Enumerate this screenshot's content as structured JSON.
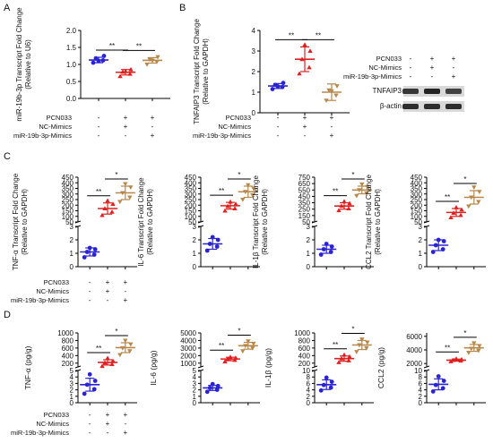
{
  "panel_letters": [
    "A",
    "B",
    "C",
    "D"
  ],
  "colors": {
    "control": "#2a23d4",
    "nc": "#e0201f",
    "mimic": "#b8874a",
    "band": "#1a1a1a",
    "blot_bg": "#d9d9d9"
  },
  "conditions": {
    "labels": [
      "PCN033",
      "NC-Mimics",
      "miR-19b-3p-Mimics"
    ],
    "matrix": [
      [
        "-",
        "+",
        "+"
      ],
      [
        "-",
        "+",
        "-"
      ],
      [
        "-",
        "-",
        "+"
      ]
    ]
  },
  "western_blot": {
    "rows": [
      "PCN033",
      "NC-Mimics",
      "miR-19b-3p-Mimics"
    ],
    "signs": [
      [
        "-",
        "+",
        "+"
      ],
      [
        "-",
        "+",
        "-"
      ],
      [
        "-",
        "-",
        "+"
      ]
    ],
    "bands": [
      "TNFAIP3",
      "β-actin"
    ],
    "band_intensity": [
      [
        0.85,
        0.95,
        0.8
      ],
      [
        0.9,
        0.9,
        0.9
      ]
    ]
  },
  "chart_data": [
    {
      "id": "A",
      "type": "scatter",
      "ylabel": "miR-19b-3p Transcript Fold Change (Relative to U6)",
      "yticks": [
        "0.0",
        "0.5",
        "1.0",
        "1.5",
        "2.0"
      ],
      "ylim": [
        0,
        2
      ],
      "groups": [
        {
          "points": [
            1.05,
            1.12,
            1.18,
            1.25,
            1.1
          ],
          "mean": 1.13,
          "sd": 0.08
        },
        {
          "points": [
            0.65,
            0.72,
            0.78,
            0.85,
            0.8
          ],
          "mean": 0.77,
          "sd": 0.08
        },
        {
          "points": [
            1.0,
            1.08,
            1.15,
            1.22,
            1.12
          ],
          "mean": 1.12,
          "sd": 0.08
        }
      ],
      "sig": [
        {
          "from": 0,
          "to": 1,
          "label": "**"
        },
        {
          "from": 1,
          "to": 2,
          "label": "**"
        }
      ]
    },
    {
      "id": "B",
      "type": "scatter",
      "ylabel": "TNFAIP3 Transcript Fold Change (Relative to GAPDH)",
      "yticks": [
        "0",
        "1",
        "2",
        "3",
        "4"
      ],
      "ylim": [
        0,
        4
      ],
      "groups": [
        {
          "points": [
            1.15,
            1.25,
            1.35,
            1.45,
            1.28
          ],
          "mean": 1.3,
          "sd": 0.12
        },
        {
          "points": [
            1.9,
            2.2,
            2.6,
            3.0,
            3.3
          ],
          "mean": 2.6,
          "sd": 0.6
        },
        {
          "points": [
            0.6,
            0.85,
            1.1,
            1.3,
            1.05
          ],
          "mean": 1.0,
          "sd": 0.4
        }
      ],
      "sig": [
        {
          "from": 0,
          "to": 1,
          "label": "**"
        },
        {
          "from": 1,
          "to": 2,
          "label": "**"
        }
      ]
    },
    {
      "id": "C1",
      "type": "scatter",
      "ylabel": "TNF-α Transcript Fold Change (Relative to GAPDH)",
      "yticks_top": [
        "50",
        "100",
        "150",
        "200",
        "250",
        "300",
        "350",
        "400",
        "450"
      ],
      "top_range": [
        50,
        450
      ],
      "yticks_bottom": [
        "0",
        "1",
        "2",
        "3"
      ],
      "bottom_range": [
        0,
        3
      ],
      "groups": [
        {
          "points": [
            0.7,
            0.9,
            1.1,
            1.3,
            1.4
          ],
          "mean": 1.1,
          "sd": 0.3
        },
        {
          "points": [
            110,
            140,
            170,
            210,
            240
          ],
          "mean": 170,
          "sd": 50
        },
        {
          "points": [
            230,
            270,
            310,
            360,
            390
          ],
          "mean": 310,
          "sd": 60
        }
      ],
      "sig": [
        {
          "from": 0,
          "to": 1,
          "label": "**"
        },
        {
          "from": 1,
          "to": 2,
          "label": "*"
        }
      ]
    },
    {
      "id": "C2",
      "type": "scatter",
      "ylabel": "IL-6 Transcript Fold Change (Relative to GAPDH)",
      "yticks_top": [
        "50",
        "100",
        "150",
        "200",
        "250",
        "300",
        "350",
        "400",
        "450"
      ],
      "top_range": [
        50,
        450
      ],
      "yticks_bottom": [
        "0",
        "1",
        "2",
        "3"
      ],
      "bottom_range": [
        0,
        3
      ],
      "groups": [
        {
          "points": [
            1.2,
            1.5,
            1.7,
            2.0,
            2.2
          ],
          "mean": 1.7,
          "sd": 0.4
        },
        {
          "points": [
            150,
            170,
            190,
            210,
            230
          ],
          "mean": 195,
          "sd": 30
        },
        {
          "points": [
            250,
            290,
            320,
            350,
            380
          ],
          "mean": 320,
          "sd": 50
        }
      ],
      "sig": [
        {
          "from": 0,
          "to": 1,
          "label": "**"
        },
        {
          "from": 1,
          "to": 2,
          "label": "*"
        }
      ]
    },
    {
      "id": "C3",
      "type": "scatter",
      "ylabel": "IL-1β Transcript Fold Change (Relative to GAPDH)",
      "yticks_top": [
        "50",
        "150",
        "250",
        "350",
        "450",
        "550",
        "650",
        "750"
      ],
      "top_range": [
        50,
        750
      ],
      "yticks_bottom": [
        "0",
        "1",
        "2",
        "3"
      ],
      "bottom_range": [
        0,
        3
      ],
      "groups": [
        {
          "points": [
            0.9,
            1.1,
            1.3,
            1.5,
            1.7
          ],
          "mean": 1.3,
          "sd": 0.3
        },
        {
          "points": [
            230,
            260,
            300,
            340,
            370
          ],
          "mean": 300,
          "sd": 50
        },
        {
          "points": [
            460,
            500,
            550,
            600,
            640
          ],
          "mean": 550,
          "sd": 60
        }
      ],
      "sig": [
        {
          "from": 0,
          "to": 1,
          "label": "**"
        },
        {
          "from": 1,
          "to": 2,
          "label": "*"
        }
      ]
    },
    {
      "id": "C4",
      "type": "scatter",
      "ylabel": "CCL2 Transcript Fold Change (Relative to GAPDH)",
      "yticks_top": [
        "50",
        "100",
        "150",
        "200",
        "250",
        "300",
        "350",
        "400",
        "450"
      ],
      "top_range": [
        50,
        450
      ],
      "yticks_bottom": [
        "0",
        "1",
        "2",
        "3"
      ],
      "bottom_range": [
        0,
        3
      ],
      "groups": [
        {
          "points": [
            1.1,
            1.3,
            1.6,
            1.9,
            2.0
          ],
          "mean": 1.6,
          "sd": 0.4
        },
        {
          "points": [
            90,
            110,
            130,
            160,
            180
          ],
          "mean": 135,
          "sd": 35
        },
        {
          "points": [
            190,
            230,
            270,
            320,
            360
          ],
          "mean": 270,
          "sd": 60
        }
      ],
      "sig": [
        {
          "from": 0,
          "to": 1,
          "label": "**"
        },
        {
          "from": 1,
          "to": 2,
          "label": "*"
        }
      ]
    },
    {
      "id": "D1",
      "type": "scatter",
      "ylabel": "TNF-α (pg/g)",
      "yticks_top": [
        "200",
        "400",
        "600",
        "800",
        "1000"
      ],
      "top_range": [
        100,
        1000
      ],
      "yticks_bottom": [
        "0",
        "1",
        "2",
        "3",
        "4",
        "5"
      ],
      "bottom_range": [
        0,
        5
      ],
      "groups": [
        {
          "points": [
            1.4,
            2.1,
            2.8,
            3.4,
            4.4
          ],
          "mean": 2.8,
          "sd": 1.0
        },
        {
          "points": [
            120,
            170,
            210,
            260,
            330
          ],
          "mean": 220,
          "sd": 70
        },
        {
          "points": [
            420,
            520,
            600,
            700,
            800
          ],
          "mean": 610,
          "sd": 130
        }
      ],
      "sig": [
        {
          "from": 0,
          "to": 1,
          "label": "**"
        },
        {
          "from": 1,
          "to": 2,
          "label": "*"
        }
      ]
    },
    {
      "id": "D2",
      "type": "scatter",
      "ylabel": "IL-6 (pg/g)",
      "yticks_top": [
        "1000",
        "2000",
        "3000",
        "4000",
        "5000"
      ],
      "top_range": [
        500,
        5000
      ],
      "yticks_bottom": [
        "0",
        "1",
        "2",
        "3",
        "4",
        "5"
      ],
      "bottom_range": [
        0,
        5
      ],
      "groups": [
        {
          "points": [
            1.7,
            2.0,
            2.3,
            2.6,
            2.9
          ],
          "mean": 2.3,
          "sd": 0.4
        },
        {
          "points": [
            1200,
            1400,
            1550,
            1700,
            1800
          ],
          "mean": 1550,
          "sd": 230
        },
        {
          "points": [
            2600,
            3000,
            3300,
            3600,
            3900
          ],
          "mean": 3300,
          "sd": 450
        }
      ],
      "sig": [
        {
          "from": 0,
          "to": 1,
          "label": "**"
        },
        {
          "from": 1,
          "to": 2,
          "label": "*"
        }
      ]
    },
    {
      "id": "D3",
      "type": "scatter",
      "ylabel": "IL-1β (pg/g)",
      "yticks_top": [
        "200",
        "400",
        "600",
        "800",
        "1000"
      ],
      "top_range": [
        100,
        1000
      ],
      "yticks_bottom": [
        "0",
        "2",
        "4",
        "6",
        "8",
        "10"
      ],
      "bottom_range": [
        0,
        10
      ],
      "groups": [
        {
          "points": [
            3.8,
            4.7,
            5.5,
            6.5,
            7.8
          ],
          "mean": 5.6,
          "sd": 1.5
        },
        {
          "points": [
            220,
            270,
            320,
            370,
            420
          ],
          "mean": 320,
          "sd": 70
        },
        {
          "points": [
            500,
            600,
            680,
            750,
            830
          ],
          "mean": 680,
          "sd": 120
        }
      ],
      "sig": [
        {
          "from": 0,
          "to": 1,
          "label": "**"
        },
        {
          "from": 1,
          "to": 2,
          "label": "*"
        }
      ]
    },
    {
      "id": "D4",
      "type": "scatter",
      "ylabel": "CCL2 (pg/g)",
      "yticks_top": [
        "2000",
        "4000",
        "6000"
      ],
      "top_range": [
        1500,
        6500
      ],
      "yticks_bottom": [
        "0",
        "2",
        "4",
        "6",
        "8",
        "10"
      ],
      "bottom_range": [
        0,
        10
      ],
      "groups": [
        {
          "points": [
            3.5,
            4.5,
            5.5,
            6.8,
            8.2
          ],
          "mean": 5.7,
          "sd": 1.7
        },
        {
          "points": [
            2300,
            2400,
            2500,
            2600,
            2700
          ],
          "mean": 2500,
          "sd": 150
        },
        {
          "points": [
            3600,
            3900,
            4200,
            4600,
            5000
          ],
          "mean": 4300,
          "sd": 500
        }
      ],
      "sig": [
        {
          "from": 0,
          "to": 1,
          "label": "**"
        },
        {
          "from": 1,
          "to": 2,
          "label": "*"
        }
      ]
    }
  ]
}
